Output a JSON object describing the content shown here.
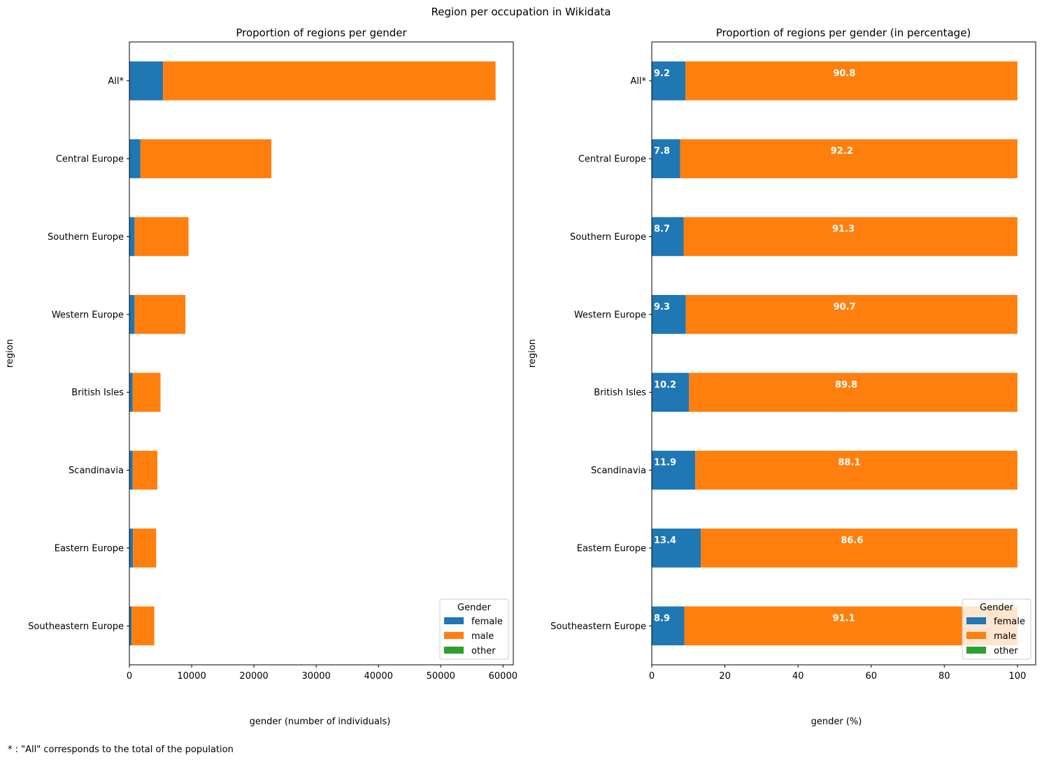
{
  "figure_title": "Region per occupation in Wikidata",
  "footnote": "* : \"All\" corresponds to the total of the population",
  "colors": {
    "female": "#1f77b4",
    "male": "#ff7f0e",
    "other": "#2ca02c"
  },
  "chart_data": [
    {
      "type": "bar",
      "orientation": "horizontal",
      "stacked": true,
      "title": "Proportion of regions per gender",
      "xlabel": "gender (number of individuals)",
      "ylabel": "region",
      "categories": [
        "All*",
        "Central Europe",
        "Southern Europe",
        "Western Europe",
        "British Isles",
        "Scandinavia",
        "Eastern Europe",
        "Southeastern Europe"
      ],
      "series": [
        {
          "name": "female",
          "values": [
            5400,
            1780,
            830,
            830,
            510,
            540,
            580,
            350
          ]
        },
        {
          "name": "male",
          "values": [
            53400,
            21020,
            8670,
            8170,
            4490,
            3960,
            3720,
            3650
          ]
        },
        {
          "name": "other",
          "values": [
            0,
            0,
            0,
            0,
            0,
            0,
            0,
            0
          ]
        }
      ],
      "xlim": [
        0,
        61650
      ],
      "xticks": [
        0,
        10000,
        20000,
        30000,
        40000,
        50000,
        60000
      ],
      "legend": {
        "title": "Gender",
        "position": "lower-right",
        "entries": [
          "female",
          "male",
          "other"
        ]
      },
      "grid": false
    },
    {
      "type": "bar",
      "orientation": "horizontal",
      "stacked": true,
      "title": "Proportion of regions per gender (in percentage)",
      "xlabel": "gender (%)",
      "ylabel": "region",
      "categories": [
        "All*",
        "Central Europe",
        "Southern Europe",
        "Western Europe",
        "British Isles",
        "Scandinavia",
        "Eastern Europe",
        "Southeastern Europe"
      ],
      "series": [
        {
          "name": "female",
          "values": [
            9.2,
            7.8,
            8.7,
            9.3,
            10.2,
            11.9,
            13.4,
            8.9
          ]
        },
        {
          "name": "male",
          "values": [
            90.8,
            92.2,
            91.3,
            90.7,
            89.8,
            88.1,
            86.6,
            91.1
          ]
        },
        {
          "name": "other",
          "values": [
            0,
            0,
            0,
            0,
            0,
            0,
            0,
            0
          ]
        }
      ],
      "data_labels": {
        "female": [
          "9.2",
          "7.8",
          "8.7",
          "9.3",
          "10.2",
          "11.9",
          "13.4",
          "8.9"
        ],
        "male": [
          "90.8",
          "92.2",
          "91.3",
          "90.7",
          "89.8",
          "88.1",
          "86.6",
          "91.1"
        ]
      },
      "xlim": [
        0,
        105
      ],
      "xticks": [
        0,
        20,
        40,
        60,
        80,
        100
      ],
      "legend": {
        "title": "Gender",
        "position": "lower-right",
        "entries": [
          "female",
          "male",
          "other"
        ]
      },
      "grid": false
    }
  ]
}
